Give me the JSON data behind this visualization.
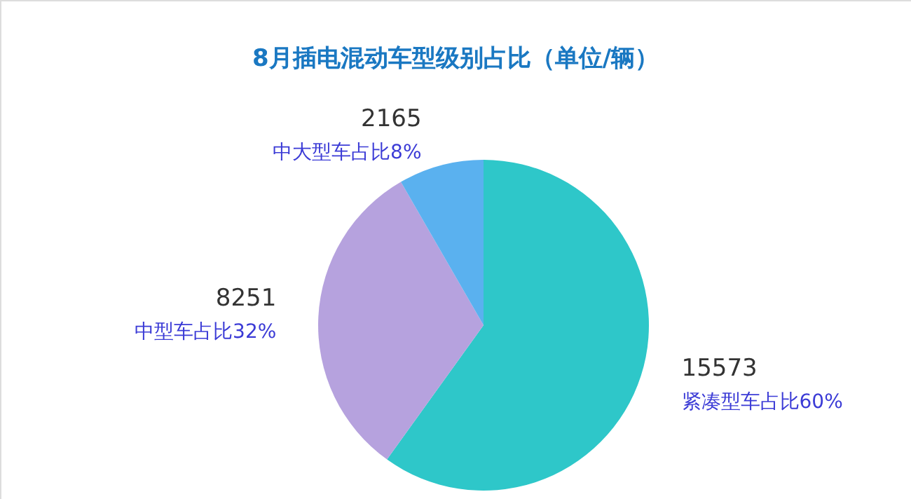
{
  "chart_data": {
    "type": "pie",
    "title": "8月插电混动车型级别占比（单位/辆）",
    "categories": [
      "紧凑型车占比60%",
      "中型车占比32%",
      "中大型车占比8%"
    ],
    "values": [
      15573,
      8251,
      2165
    ],
    "colors": [
      "#2ec7c9",
      "#b6a2de",
      "#5ab1ef"
    ],
    "data_labels": true
  }
}
